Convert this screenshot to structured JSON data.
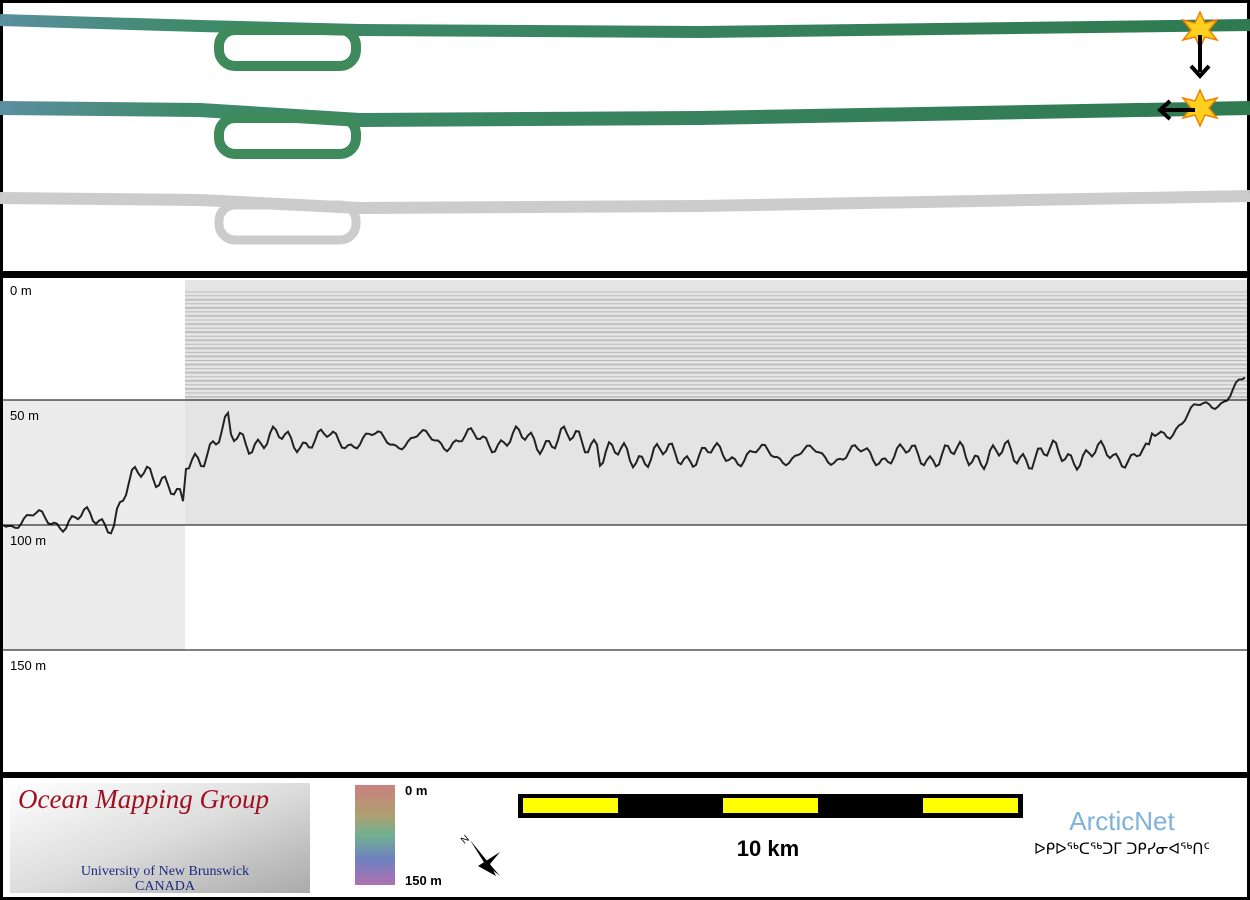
{
  "depth_labels": [
    "0 m",
    "50 m",
    "100 m",
    "150 m"
  ],
  "logo": {
    "title": "Ocean Mapping Group",
    "university": "University of New Brunswick",
    "country": "CANADA"
  },
  "colorbar": {
    "top": "0 m",
    "bottom": "150 m"
  },
  "scale_bar": "10 km",
  "partner": {
    "name": "ArcticNet",
    "syllabics": "ᐅᑭᐅᖅᑕᖅᑐᒥ ᑐᑭᓯᓂᐊᖅᑎᑦ"
  }
}
